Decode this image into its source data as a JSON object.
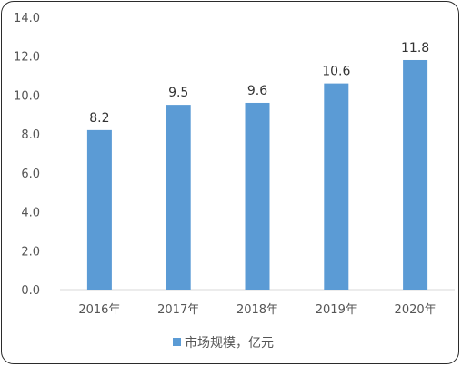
{
  "chart_data": {
    "type": "bar",
    "categories": [
      "2016年",
      "2017年",
      "2018年",
      "2019年",
      "2020年"
    ],
    "series": [
      {
        "name": "市场规模，亿元",
        "values": [
          8.2,
          9.5,
          9.6,
          10.6,
          11.8
        ],
        "color": "#5b9bd5"
      }
    ],
    "data_labels": [
      "8.2",
      "9.5",
      "9.6",
      "10.6",
      "11.8"
    ],
    "y_ticks": [
      "0.0",
      "2.0",
      "4.0",
      "6.0",
      "8.0",
      "10.0",
      "12.0",
      "14.0"
    ],
    "ylim": [
      0,
      14
    ],
    "title": "",
    "xlabel": "",
    "ylabel": "",
    "grid": false,
    "legend": "bottom"
  }
}
